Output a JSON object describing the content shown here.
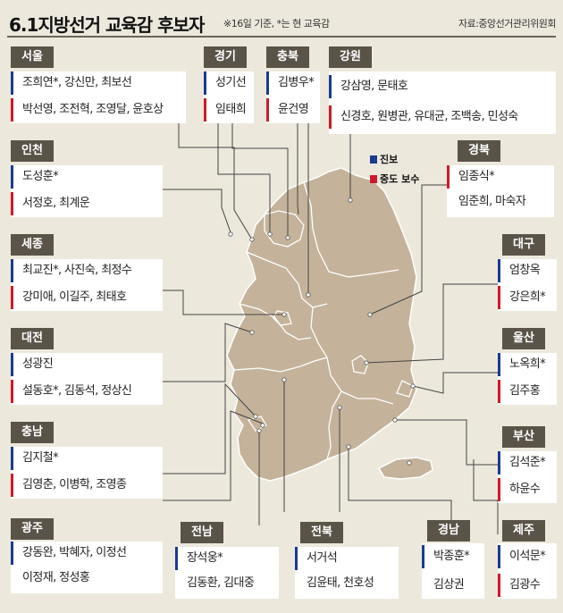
{
  "title": "6.1지방선거 교육감 후보자",
  "note": "※16일 기준, *는 현 교육감",
  "source": "자료:중앙선거관리위원회",
  "legend": {
    "progressive": "진보",
    "conservative": "중도 보수"
  },
  "colors": {
    "progressive": "#1a3b8f",
    "conservative": "#cc1b2b",
    "map": "#c4b39a",
    "tag": "#5a5348"
  },
  "regions": {
    "seoul": {
      "name": "서울",
      "prog": "조희연*, 강신만, 최보선",
      "cons": "박선영, 조전혁, 조영달, 윤호상"
    },
    "gyeonggi": {
      "name": "경기",
      "prog": "성기선",
      "cons": "임태희"
    },
    "chungbuk": {
      "name": "충북",
      "prog": "김병우*",
      "cons": "윤건영"
    },
    "gangwon": {
      "name": "강원",
      "prog": "강삼영, 문태호",
      "cons": "신경호, 원병관, 유대균, 조백송, 민성숙"
    },
    "incheon": {
      "name": "인천",
      "prog": "도성훈*",
      "cons": "서정호, 최계운"
    },
    "gyeongbuk": {
      "name": "경북",
      "cons": "임종식*",
      "extra": "임준희, 마숙자"
    },
    "sejong": {
      "name": "세종",
      "prog": "최교진*, 사진숙, 최정수",
      "cons": "강미애, 이길주, 최태호"
    },
    "daegu": {
      "name": "대구",
      "prog": "엄창옥",
      "cons": "강은희*"
    },
    "daejeon": {
      "name": "대전",
      "prog": "성광진",
      "cons": "설동호*, 김동석, 정상신"
    },
    "ulsan": {
      "name": "울산",
      "prog": "노옥희*",
      "cons": "김주홍"
    },
    "chungnam": {
      "name": "충남",
      "prog": "김지철*",
      "cons": "김영춘, 이병학, 조영종"
    },
    "busan": {
      "name": "부산",
      "prog": "김석준*",
      "cons": "하윤수"
    },
    "gwangju": {
      "name": "광주",
      "prog": "강동완, 박혜자, 이정선",
      "extra": "이정재, 정성홍"
    },
    "jeonnam": {
      "name": "전남",
      "prog": "장석웅*",
      "extra": "김동환, 김대중"
    },
    "jeonbuk": {
      "name": "전북",
      "prog": "서거석",
      "extra": "김윤태, 천호성"
    },
    "gyeongnam": {
      "name": "경남",
      "prog": "박종훈*",
      "extra": "김상권"
    },
    "jeju": {
      "name": "제주",
      "prog": "이석문*",
      "cons": "김광수"
    }
  }
}
